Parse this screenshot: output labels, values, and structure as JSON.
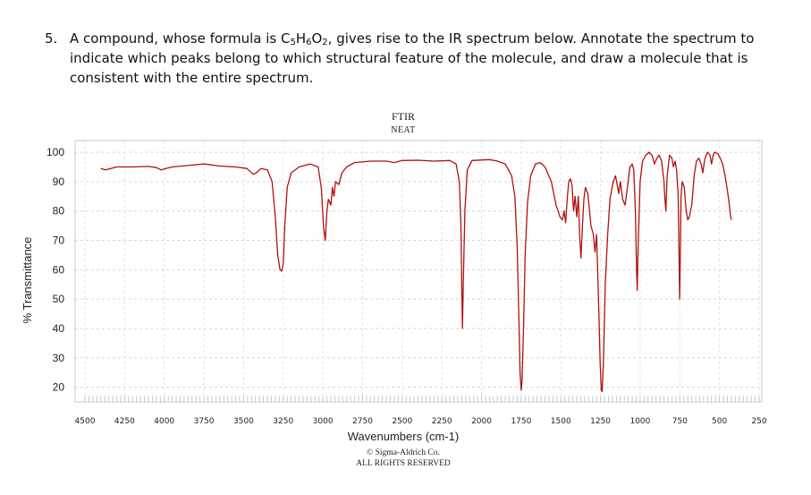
{
  "question": {
    "number": "5.",
    "text_before": "A compound, whose formula is C",
    "sub1": "5",
    "mid1": "H",
    "sub2": "6",
    "mid2": "O",
    "sub3": "2",
    "text_after": ", gives rise to the IR spectrum below. Annotate the spectrum to indicate which peaks belong to which structural feature of the molecule, and draw a molecule that is consistent with the entire spectrum."
  },
  "chart_data": {
    "type": "line",
    "title": "FTIR",
    "subtitle": "NEAT",
    "xlabel": "Wavenumbers (cm-1)",
    "ylabel": "% Transmittance",
    "xlim": [
      4500,
      250
    ],
    "ylim": [
      15,
      104
    ],
    "x_ticks": [
      4500,
      4250,
      4000,
      3750,
      3500,
      3250,
      3000,
      2750,
      2500,
      2250,
      2000,
      1750,
      1500,
      1250,
      1000,
      750,
      500,
      250
    ],
    "y_ticks": [
      20,
      30,
      40,
      50,
      60,
      70,
      80,
      90,
      100
    ],
    "grid": true,
    "line_color": "#b01010",
    "series": [
      {
        "name": "IR spectrum",
        "points": [
          [
            4400,
            94.5
          ],
          [
            4370,
            94
          ],
          [
            4300,
            95
          ],
          [
            4200,
            95
          ],
          [
            4100,
            95.2
          ],
          [
            4050,
            94.8
          ],
          [
            4020,
            94
          ],
          [
            3990,
            94.5
          ],
          [
            3950,
            95
          ],
          [
            3850,
            95.5
          ],
          [
            3750,
            96
          ],
          [
            3650,
            95.3
          ],
          [
            3550,
            95
          ],
          [
            3480,
            94.5
          ],
          [
            3440,
            92.5
          ],
          [
            3420,
            93
          ],
          [
            3390,
            94.5
          ],
          [
            3350,
            94
          ],
          [
            3320,
            90
          ],
          [
            3300,
            78
          ],
          [
            3285,
            65
          ],
          [
            3270,
            60
          ],
          [
            3260,
            59.5
          ],
          [
            3250,
            62
          ],
          [
            3240,
            75
          ],
          [
            3225,
            88
          ],
          [
            3200,
            93
          ],
          [
            3150,
            95
          ],
          [
            3080,
            96
          ],
          [
            3030,
            95
          ],
          [
            3010,
            88
          ],
          [
            2995,
            74
          ],
          [
            2985,
            70
          ],
          [
            2975,
            80
          ],
          [
            2965,
            84
          ],
          [
            2950,
            82
          ],
          [
            2940,
            88
          ],
          [
            2930,
            85
          ],
          [
            2920,
            90
          ],
          [
            2900,
            89
          ],
          [
            2880,
            93
          ],
          [
            2850,
            95
          ],
          [
            2800,
            96.5
          ],
          [
            2700,
            97
          ],
          [
            2600,
            97
          ],
          [
            2550,
            96.5
          ],
          [
            2500,
            97.2
          ],
          [
            2400,
            97.3
          ],
          [
            2300,
            97
          ],
          [
            2200,
            97.2
          ],
          [
            2160,
            96
          ],
          [
            2140,
            90
          ],
          [
            2130,
            75
          ],
          [
            2125,
            55
          ],
          [
            2120,
            40
          ],
          [
            2115,
            55
          ],
          [
            2105,
            80
          ],
          [
            2090,
            94
          ],
          [
            2060,
            97.2
          ],
          [
            1950,
            97.5
          ],
          [
            1900,
            97
          ],
          [
            1850,
            96
          ],
          [
            1810,
            92
          ],
          [
            1790,
            85
          ],
          [
            1775,
            68
          ],
          [
            1765,
            45
          ],
          [
            1757,
            25
          ],
          [
            1750,
            19
          ],
          [
            1745,
            22
          ],
          [
            1735,
            40
          ],
          [
            1725,
            65
          ],
          [
            1710,
            83
          ],
          [
            1690,
            92
          ],
          [
            1660,
            96
          ],
          [
            1630,
            96.5
          ],
          [
            1600,
            95
          ],
          [
            1560,
            90
          ],
          [
            1530,
            82
          ],
          [
            1505,
            78
          ],
          [
            1490,
            77
          ],
          [
            1480,
            80
          ],
          [
            1470,
            76
          ],
          [
            1460,
            84
          ],
          [
            1450,
            90
          ],
          [
            1440,
            91
          ],
          [
            1430,
            89
          ],
          [
            1420,
            80
          ],
          [
            1410,
            85
          ],
          [
            1400,
            78
          ],
          [
            1390,
            85
          ],
          [
            1380,
            70
          ],
          [
            1373,
            64
          ],
          [
            1365,
            74
          ],
          [
            1355,
            84
          ],
          [
            1345,
            88
          ],
          [
            1330,
            86
          ],
          [
            1310,
            75
          ],
          [
            1295,
            72
          ],
          [
            1285,
            66
          ],
          [
            1275,
            72
          ],
          [
            1268,
            60
          ],
          [
            1260,
            45
          ],
          [
            1252,
            28
          ],
          [
            1245,
            19
          ],
          [
            1240,
            18.5
          ],
          [
            1232,
            28
          ],
          [
            1220,
            55
          ],
          [
            1205,
            72
          ],
          [
            1190,
            84
          ],
          [
            1170,
            90
          ],
          [
            1155,
            92
          ],
          [
            1145,
            89
          ],
          [
            1135,
            86
          ],
          [
            1125,
            90
          ],
          [
            1110,
            84
          ],
          [
            1095,
            82
          ],
          [
            1080,
            88
          ],
          [
            1065,
            95
          ],
          [
            1050,
            96
          ],
          [
            1040,
            94
          ],
          [
            1030,
            80
          ],
          [
            1023,
            60
          ],
          [
            1018,
            53
          ],
          [
            1012,
            70
          ],
          [
            1000,
            90
          ],
          [
            985,
            97
          ],
          [
            965,
            99
          ],
          [
            945,
            100
          ],
          [
            925,
            99
          ],
          [
            910,
            96
          ],
          [
            895,
            98
          ],
          [
            880,
            99
          ],
          [
            865,
            97
          ],
          [
            850,
            90
          ],
          [
            845,
            85
          ],
          [
            838,
            80
          ],
          [
            830,
            92
          ],
          [
            815,
            99
          ],
          [
            800,
            98
          ],
          [
            790,
            95
          ],
          [
            780,
            97
          ],
          [
            770,
            94
          ],
          [
            760,
            85
          ],
          [
            755,
            65
          ],
          [
            751,
            50
          ],
          [
            748,
            60
          ],
          [
            742,
            85
          ],
          [
            735,
            90
          ],
          [
            722,
            88
          ],
          [
            710,
            80
          ],
          [
            700,
            77
          ],
          [
            690,
            78
          ],
          [
            675,
            82
          ],
          [
            660,
            92
          ],
          [
            645,
            97
          ],
          [
            630,
            98
          ],
          [
            615,
            96
          ],
          [
            605,
            93
          ],
          [
            595,
            97
          ],
          [
            585,
            99
          ],
          [
            575,
            100
          ],
          [
            560,
            99
          ],
          [
            550,
            96
          ],
          [
            540,
            99
          ],
          [
            530,
            100
          ],
          [
            510,
            99.5
          ],
          [
            495,
            98
          ],
          [
            480,
            96
          ],
          [
            465,
            92
          ],
          [
            450,
            87
          ],
          [
            440,
            83
          ],
          [
            430,
            78
          ],
          [
            425,
            77
          ]
        ]
      }
    ],
    "credit_line1": "© Sigma-Aldrich Co.",
    "credit_line2": "ALL RIGHTS RESERVED"
  }
}
